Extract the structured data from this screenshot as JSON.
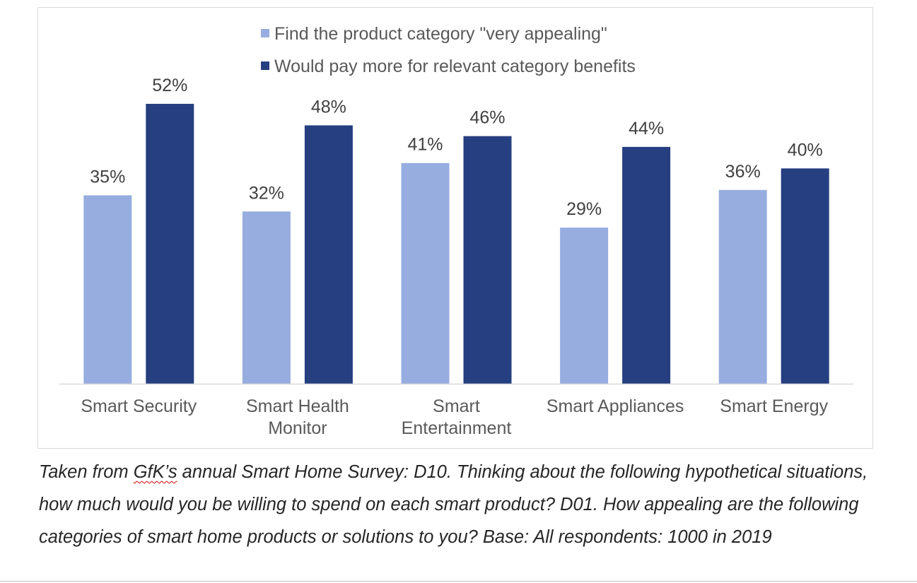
{
  "chart_data": {
    "type": "bar",
    "categories": [
      [
        "Smart Security"
      ],
      [
        "Smart Health",
        "Monitor"
      ],
      [
        "Smart",
        "Entertainment"
      ],
      [
        "Smart Appliances"
      ],
      [
        "Smart Energy"
      ]
    ],
    "series": [
      {
        "name": "Find the product category \"very appealing\"",
        "values": [
          35,
          32,
          41,
          29,
          36
        ],
        "color": "#97add f"
      },
      {
        "name": "Would pay more for relevant category benefits",
        "values": [
          52,
          48,
          46,
          44,
          40
        ],
        "color": "#253f80"
      }
    ],
    "value_suffix": "%",
    "data_labels": true,
    "ylim": [
      0,
      60
    ],
    "grid": false,
    "legend_position": "top-center",
    "title": "",
    "xlabel": "",
    "ylabel": ""
  },
  "caption": {
    "before": "Taken from ",
    "underlined": "GfK’s",
    "after": " annual Smart Home Survey: D10. Thinking about the following hypothetical situations, how much would you be willing to spend on each smart product? D01. How appealing are the following categories of smart home products or solutions to you? Base: All respondents: 1000 in 2019"
  }
}
